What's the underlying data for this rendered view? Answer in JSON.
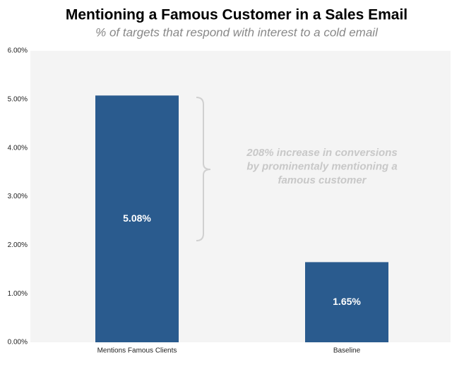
{
  "chart_data": {
    "type": "bar",
    "title": "Mentioning a Famous Customer in a Sales Email",
    "subtitle": "% of targets that respond with interest to a cold email",
    "categories": [
      "Mentions Famous Clients",
      "Baseline"
    ],
    "values": [
      5.08,
      1.65
    ],
    "value_labels": [
      "5.08%",
      "1.65%"
    ],
    "color": "#2a5b8e",
    "ylim": [
      0,
      6
    ],
    "yticks": [
      {
        "value": 0,
        "label": "0.00%"
      },
      {
        "value": 1,
        "label": "1.00%"
      },
      {
        "value": 2,
        "label": "2.00%"
      },
      {
        "value": 3,
        "label": "3.00%"
      },
      {
        "value": 4,
        "label": "4.00%"
      },
      {
        "value": 5,
        "label": "5.00%"
      },
      {
        "value": 6,
        "label": "6.00%"
      }
    ],
    "annotation": [
      "208% increase in conversions",
      "by prominentaly mentioning a",
      "famous customer"
    ]
  }
}
